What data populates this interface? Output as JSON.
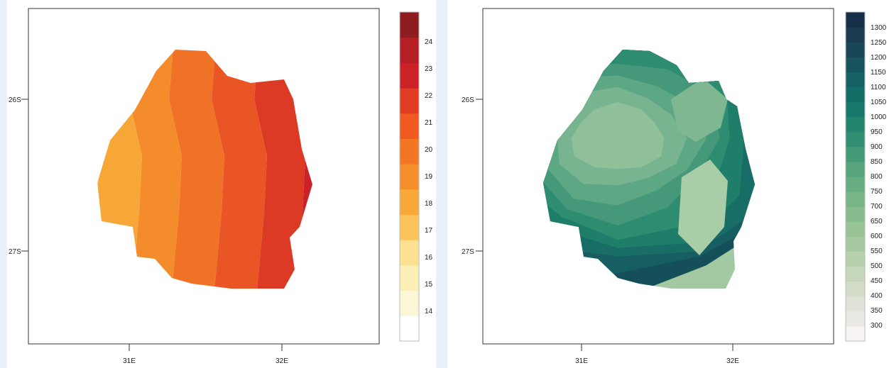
{
  "maps": [
    {
      "id": "left",
      "y_ticks": [
        "26S",
        "27S"
      ],
      "x_ticks": [
        "31E",
        "32E"
      ],
      "colorbar": {
        "labels": [
          "24",
          "23",
          "22",
          "21",
          "20",
          "19",
          "18",
          "17",
          "16",
          "15",
          "14"
        ],
        "colors": [
          "#ffffff",
          "#fdf6d6",
          "#fcefb4",
          "#fde090",
          "#fcc35a",
          "#f8a93a",
          "#f58f2b",
          "#f37625",
          "#ee5a22",
          "#e13d24",
          "#cc2127",
          "#b51e25",
          "#8f1d1f"
        ]
      },
      "bands": [
        "#f9c14a",
        "#f6a737",
        "#f48c2c",
        "#f07226",
        "#ea5525",
        "#dd3a25",
        "#cd2127",
        "#b51e25"
      ]
    },
    {
      "id": "right",
      "y_ticks": [
        "26S",
        "27S"
      ],
      "x_ticks": [
        "31E",
        "32E"
      ],
      "colorbar": {
        "labels": [
          "1300",
          "1250",
          "1200",
          "1150",
          "1100",
          "1050",
          "1000",
          "950",
          "900",
          "850",
          "800",
          "750",
          "700",
          "650",
          "600",
          "550",
          "500",
          "450",
          "400",
          "350",
          "300"
        ],
        "colors": [
          "#f8f3f3",
          "#eae8e4",
          "#dfe3d6",
          "#d3dcc8",
          "#c5d6bb",
          "#b7d0ae",
          "#a7c9a2",
          "#98c397",
          "#87bc8e",
          "#77b486",
          "#66ad81",
          "#56a37c",
          "#449a77",
          "#338f73",
          "#24856f",
          "#17796c",
          "#136d67",
          "#156062",
          "#17535c",
          "#184656",
          "#1a3a50",
          "#162e47"
        ]
      },
      "bands": [
        "#15505a",
        "#165e62",
        "#186d66",
        "#1f7e6a",
        "#2e8c70",
        "#45997a",
        "#5ea785",
        "#78b490",
        "#8fc09a",
        "#a2c9a2"
      ]
    }
  ]
}
